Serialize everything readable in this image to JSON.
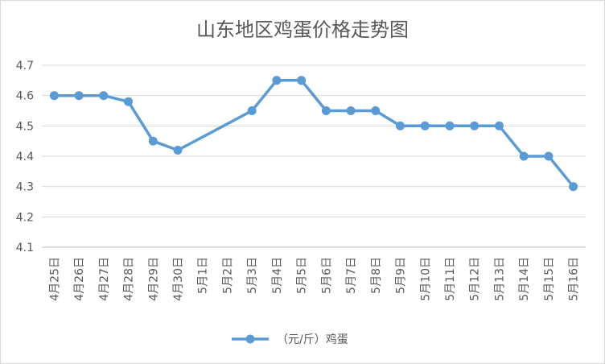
{
  "chart_data": {
    "type": "line",
    "title": "山东地区鸡蛋价格走势图",
    "xlabel": "",
    "ylabel": "",
    "categories": [
      "4月25日",
      "4月26日",
      "4月27日",
      "4月28日",
      "4月29日",
      "4月30日",
      "5月1日",
      "5月2日",
      "5月3日",
      "5月4日",
      "5月5日",
      "5月6日",
      "5月7日",
      "5月8日",
      "5月9日",
      "5月10日",
      "5月11日",
      "5月12日",
      "5月13日",
      "5月14日",
      "5月15日",
      "5月16日"
    ],
    "yticks": [
      "4.1",
      "4.2",
      "4.3",
      "4.4",
      "4.5",
      "4.6",
      "4.7"
    ],
    "ylim": [
      4.1,
      4.7
    ],
    "grid": true,
    "legend_position": "bottom",
    "series": [
      {
        "name": "（元/斤）鸡蛋",
        "color": "#5b9bd5",
        "values": [
          4.6,
          4.6,
          4.6,
          4.58,
          4.45,
          4.42,
          null,
          null,
          4.55,
          4.65,
          4.65,
          4.55,
          4.55,
          4.55,
          4.5,
          4.5,
          4.5,
          4.5,
          4.5,
          4.4,
          4.4,
          4.3
        ]
      }
    ]
  }
}
